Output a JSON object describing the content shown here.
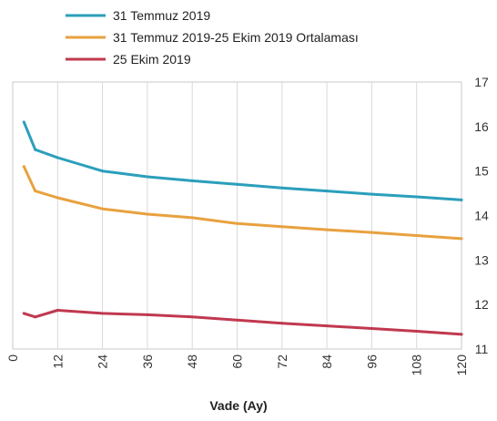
{
  "chart_data": {
    "type": "line",
    "title": "",
    "xlabel": "Vade (Ay)",
    "ylabel": "",
    "x_ticks": [
      "0",
      "12",
      "24",
      "36",
      "48",
      "60",
      "72",
      "84",
      "96",
      "108",
      "120"
    ],
    "y_ticks": [
      "11",
      "12",
      "13",
      "14",
      "15",
      "16",
      "17"
    ],
    "xlim": [
      0,
      120
    ],
    "ylim": [
      11,
      17
    ],
    "y_axis_position": "right",
    "x_tick_label_rotation": "vertical",
    "grid": "vertical gridlines at x ticks",
    "legend_position": "top",
    "series": [
      {
        "name": "31 Temmuz 2019",
        "color": "#2B9FBB",
        "x": [
          3,
          6,
          12,
          24,
          36,
          48,
          60,
          72,
          84,
          96,
          108,
          120
        ],
        "y": [
          16.1,
          15.48,
          15.3,
          15.0,
          14.87,
          14.78,
          14.7,
          14.62,
          14.55,
          14.48,
          14.42,
          14.35
        ]
      },
      {
        "name": "31 Temmuz 2019-25 Ekim 2019 Ortalaması",
        "color": "#E8A13F",
        "x": [
          3,
          6,
          12,
          24,
          36,
          48,
          60,
          72,
          84,
          96,
          108,
          120
        ],
        "y": [
          15.1,
          14.55,
          14.4,
          14.15,
          14.03,
          13.95,
          13.82,
          13.75,
          13.68,
          13.62,
          13.55,
          13.48
        ]
      },
      {
        "name": "25 Ekim 2019",
        "color": "#C0394F",
        "x": [
          3,
          6,
          12,
          24,
          36,
          48,
          60,
          72,
          84,
          96,
          108,
          120
        ],
        "y": [
          11.8,
          11.72,
          11.87,
          11.8,
          11.77,
          11.72,
          11.65,
          11.58,
          11.52,
          11.46,
          11.4,
          11.33
        ]
      }
    ]
  }
}
